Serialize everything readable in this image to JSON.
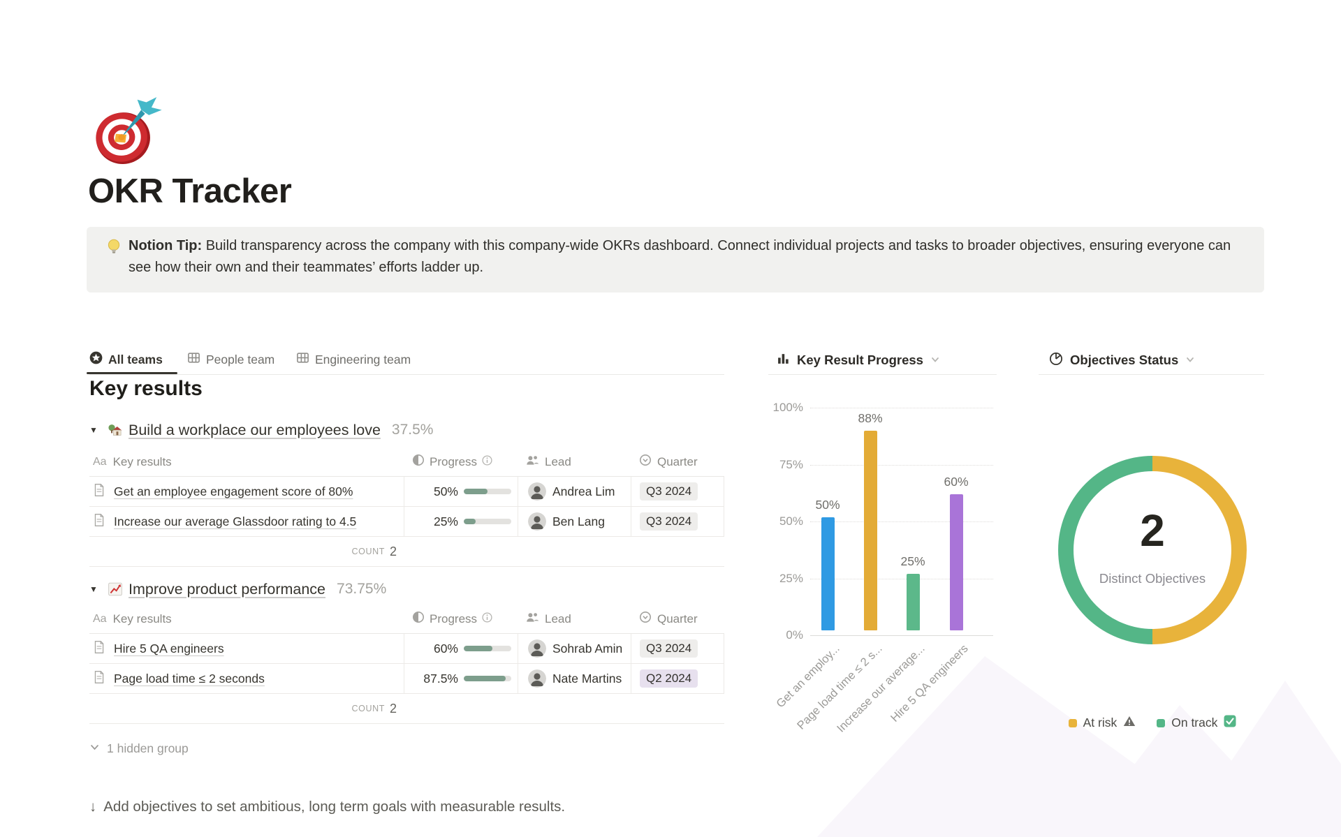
{
  "page": {
    "icon": "target-and-dart",
    "title": "OKR Tracker"
  },
  "callout": {
    "icon": "light-bulb",
    "label_bold": "Notion Tip:",
    "text": " Build transparency across the company with this company-wide OKRs dashboard. Connect individual projects and tasks to broader objectives, ensuring everyone can see how their own and their teammates’ efforts ladder up."
  },
  "tabs": [
    {
      "label": "All teams",
      "icon": "star-circle",
      "active": true
    },
    {
      "label": "People team",
      "icon": "table",
      "active": false
    },
    {
      "label": "Engineering team",
      "icon": "table",
      "active": false
    }
  ],
  "key_results": {
    "heading": "Key results",
    "columns": {
      "name_type": "Aa",
      "name": "Key results",
      "progress": "Progress",
      "lead": "Lead",
      "quarter": "Quarter"
    },
    "groups": [
      {
        "icon": "house-with-garden",
        "title": "Build a workplace our employees love",
        "percent": "37.5%",
        "rows": [
          {
            "name": "Get an employee engagement score of 80%",
            "progress_label": "50%",
            "progress_value": 50,
            "lead": "Andrea Lim",
            "quarter": "Q3 2024",
            "quarter_variant": "gray"
          },
          {
            "name": "Increase our average Glassdoor rating to 4.5",
            "progress_label": "25%",
            "progress_value": 25,
            "lead": "Ben Lang",
            "quarter": "Q3 2024",
            "quarter_variant": "gray"
          }
        ],
        "count_label": "COUNT",
        "count_value": "2"
      },
      {
        "icon": "chart-increasing",
        "title": "Improve product performance",
        "percent": "73.75%",
        "rows": [
          {
            "name": "Hire 5 QA engineers",
            "progress_label": "60%",
            "progress_value": 60,
            "lead": "Sohrab Amin",
            "quarter": "Q3 2024",
            "quarter_variant": "gray"
          },
          {
            "name": "Page load time ≤ 2 seconds",
            "progress_label": "87.5%",
            "progress_value": 87.5,
            "lead": "Nate Martins",
            "quarter": "Q2 2024",
            "quarter_variant": "purple"
          }
        ],
        "count_label": "COUNT",
        "count_value": "2"
      }
    ],
    "hidden_group": "1 hidden group"
  },
  "charts": {
    "bar_title": "Key Result Progress",
    "donut_title": "Objectives Status",
    "donut_center_value": "2",
    "donut_center_label": "Distinct Objectives",
    "legend": [
      {
        "label": "At risk",
        "icon": "warning"
      },
      {
        "label": "On track",
        "icon": "check"
      }
    ]
  },
  "footer": {
    "arrow": "↓",
    "text": "Add objectives to set ambitious, long term goals with measurable results."
  },
  "colors": {
    "progress_fill": "#7d9e8c",
    "badge_gray_bg": "#eeedeb",
    "badge_purple_bg": "#e7e0ee",
    "active_tab_underline": "#37352f",
    "callout_bg": "#f1f1ef"
  },
  "chart_data": [
    {
      "type": "bar",
      "title": "Key Result Progress",
      "categories": [
        "Get an employ...",
        "Page load time ≤ 2 s...",
        "Increase our average...",
        "Hire 5 QA engineers"
      ],
      "values": [
        50,
        88,
        25,
        60
      ],
      "value_labels": [
        "50%",
        "88%",
        "25%",
        "60%"
      ],
      "bar_colors": [
        "#2f9ae3",
        "#e3ab36",
        "#5cb88a",
        "#a974d8"
      ],
      "y_ticks": [
        "100%",
        "75%",
        "50%",
        "25%",
        "0%"
      ],
      "ylim": [
        0,
        100
      ],
      "grid": "dotted-horizontal",
      "xlabel": "",
      "ylabel": ""
    },
    {
      "type": "donut",
      "title": "Objectives Status",
      "slices": [
        {
          "label": "At risk",
          "value": 1,
          "color": "#e8b33b"
        },
        {
          "label": "On track",
          "value": 1,
          "color": "#54b687"
        }
      ],
      "center_value": "2",
      "center_label": "Distinct Objectives",
      "legend_position": "bottom"
    }
  ]
}
